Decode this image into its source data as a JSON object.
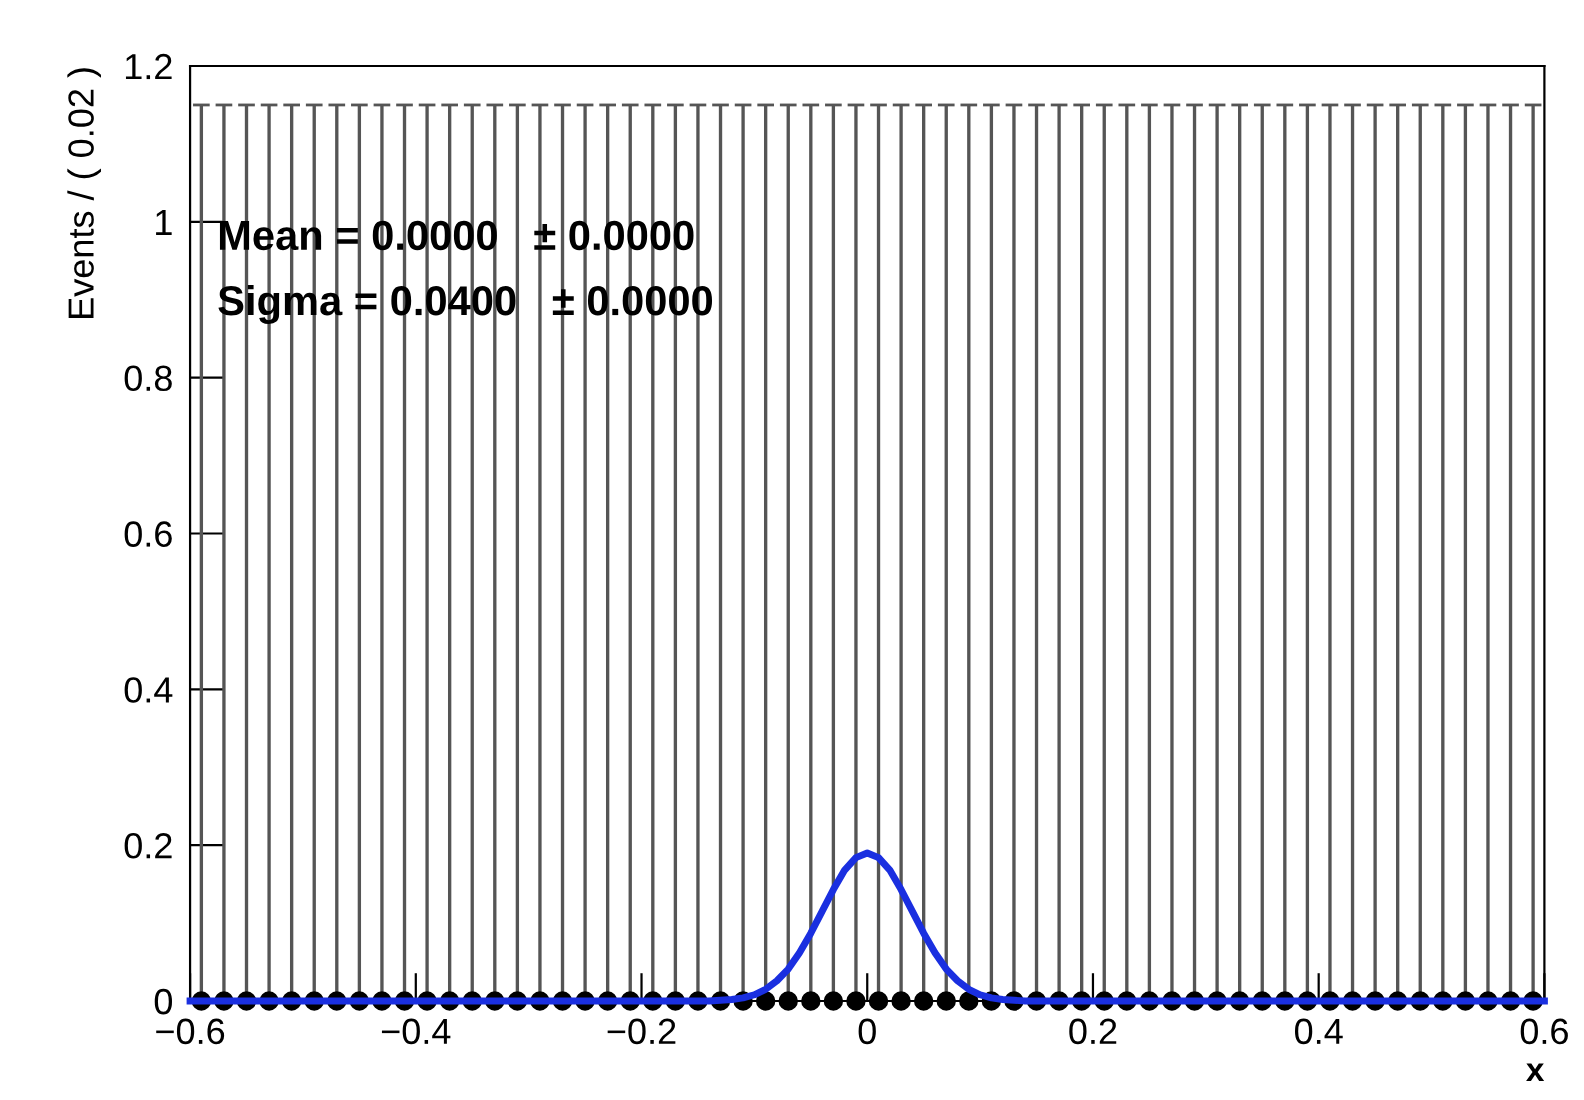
{
  "chart_data": {
    "type": "scatter",
    "xlabel": "x",
    "ylabel": "Events / ( 0.02 )",
    "annotations": [
      "Mean = 0.0000   ± 0.0000",
      "Sigma = 0.0400   ± 0.0000"
    ],
    "xlim": [
      -0.6,
      0.6
    ],
    "ylim": [
      0,
      1.2
    ],
    "xticks": [
      -0.6,
      -0.4,
      -0.2,
      0,
      0.2,
      0.4,
      0.6
    ],
    "yticks": [
      0,
      0.2,
      0.4,
      0.6,
      0.8,
      1,
      1.2
    ],
    "grid": false,
    "legend": false,
    "series": [
      {
        "type": "scatter",
        "color": "#000000",
        "marker": "circle",
        "x": [
          -0.59,
          -0.57,
          -0.55,
          -0.53,
          -0.51,
          -0.49,
          -0.47,
          -0.45,
          -0.43,
          -0.41,
          -0.39,
          -0.37,
          -0.35,
          -0.33,
          -0.31,
          -0.29,
          -0.27,
          -0.25,
          -0.23,
          -0.21,
          -0.19,
          -0.17,
          -0.15,
          -0.13,
          -0.11,
          -0.09,
          -0.07,
          -0.05,
          -0.03,
          -0.01,
          0.01,
          0.03,
          0.05,
          0.07,
          0.09,
          0.11,
          0.13,
          0.15,
          0.17,
          0.19,
          0.21,
          0.23,
          0.25,
          0.27,
          0.29,
          0.31,
          0.33,
          0.35,
          0.37,
          0.39,
          0.41,
          0.43,
          0.45,
          0.47,
          0.49,
          0.51,
          0.53,
          0.55,
          0.57,
          0.59
        ],
        "values": [
          0,
          0,
          0,
          0,
          0,
          0,
          0,
          0,
          0,
          0,
          0,
          0,
          0,
          0,
          0,
          0,
          0,
          0,
          0,
          0,
          0,
          0,
          0,
          0,
          0,
          0,
          0,
          0,
          0,
          0,
          0,
          0,
          0,
          0,
          0,
          0,
          0,
          0,
          0,
          0,
          0,
          0,
          0,
          0,
          0,
          0,
          0,
          0,
          0,
          0,
          0,
          0,
          0,
          0,
          0,
          0,
          0,
          0,
          0,
          0
        ],
        "errors": [
          [
            0,
            1.15
          ],
          [
            0,
            1.15
          ],
          [
            0,
            1.15
          ],
          [
            0,
            1.15
          ],
          [
            0,
            1.15
          ],
          [
            0,
            1.15
          ],
          [
            0,
            1.15
          ],
          [
            0,
            1.15
          ],
          [
            0,
            1.15
          ],
          [
            0,
            1.15
          ],
          [
            0,
            1.15
          ],
          [
            0,
            1.15
          ],
          [
            0,
            1.15
          ],
          [
            0,
            1.15
          ],
          [
            0,
            1.15
          ],
          [
            0,
            1.15
          ],
          [
            0,
            1.15
          ],
          [
            0,
            1.15
          ],
          [
            0,
            1.15
          ],
          [
            0,
            1.15
          ],
          [
            0,
            1.15
          ],
          [
            0,
            1.15
          ],
          [
            0,
            1.15
          ],
          [
            0,
            1.15
          ],
          [
            0,
            1.15
          ],
          [
            0,
            1.15
          ],
          [
            0,
            1.15
          ],
          [
            0,
            1.15
          ],
          [
            0,
            1.15
          ],
          [
            0,
            1.15
          ],
          [
            0,
            1.15
          ],
          [
            0,
            1.15
          ],
          [
            0,
            1.15
          ],
          [
            0,
            1.15
          ],
          [
            0,
            1.15
          ],
          [
            0,
            1.15
          ],
          [
            0,
            1.15
          ],
          [
            0,
            1.15
          ],
          [
            0,
            1.15
          ],
          [
            0,
            1.15
          ],
          [
            0,
            1.15
          ],
          [
            0,
            1.15
          ],
          [
            0,
            1.15
          ],
          [
            0,
            1.15
          ],
          [
            0,
            1.15
          ],
          [
            0,
            1.15
          ],
          [
            0,
            1.15
          ],
          [
            0,
            1.15
          ],
          [
            0,
            1.15
          ],
          [
            0,
            1.15
          ],
          [
            0,
            1.15
          ],
          [
            0,
            1.15
          ],
          [
            0,
            1.15
          ],
          [
            0,
            1.15
          ],
          [
            0,
            1.15
          ],
          [
            0,
            1.15
          ],
          [
            0,
            1.15
          ],
          [
            0,
            1.15
          ],
          [
            0,
            1.15
          ],
          [
            0,
            1.15
          ]
        ]
      },
      {
        "type": "line",
        "color": "#1a2fe0",
        "marker": "none",
        "line_style": "solid",
        "x": [
          -0.6,
          -0.14,
          -0.12,
          -0.11,
          -0.1,
          -0.09,
          -0.08,
          -0.07,
          -0.06,
          -0.05,
          -0.04,
          -0.03,
          -0.02,
          -0.01,
          0,
          0.01,
          0.02,
          0.03,
          0.04,
          0.05,
          0.06,
          0.07,
          0.08,
          0.09,
          0.1,
          0.11,
          0.12,
          0.14,
          0.6
        ],
        "values": [
          0,
          0,
          0.002,
          0.004,
          0.008,
          0.015,
          0.026,
          0.041,
          0.062,
          0.087,
          0.115,
          0.143,
          0.168,
          0.184,
          0.19,
          0.184,
          0.168,
          0.143,
          0.115,
          0.087,
          0.062,
          0.041,
          0.026,
          0.015,
          0.008,
          0.004,
          0.002,
          0,
          0
        ]
      }
    ]
  }
}
